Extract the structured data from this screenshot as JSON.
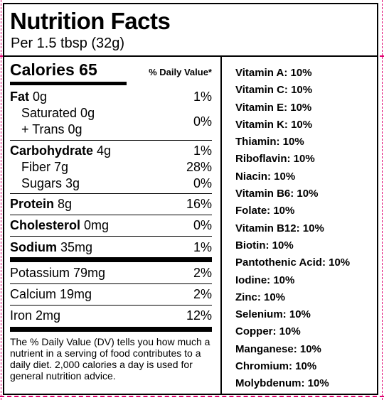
{
  "header": {
    "title": "Nutrition Facts",
    "serving": "Per 1.5 tbsp (32g)"
  },
  "calories": {
    "label": "Calories 65",
    "dv_header": "% Daily Value*"
  },
  "nutrients": {
    "fat_name": "Fat",
    "fat_amount": " 0g",
    "fat_pct": "1%",
    "saturated": "Saturated 0g",
    "trans": "+ Trans 0g",
    "sat_trans_pct": "0%",
    "carb_name": "Carbohydrate",
    "carb_amount": " 4g",
    "carb_pct": "1%",
    "fiber": "Fiber 7g",
    "fiber_pct": "28%",
    "sugars": "Sugars 3g",
    "sugars_pct": "0%",
    "protein_name": "Protein",
    "protein_amount": " 8g",
    "protein_pct": "16%",
    "chol_name": "Cholesterol",
    "chol_amount": " 0mg",
    "chol_pct": "0%",
    "sodium_name": "Sodium",
    "sodium_amount": " 35mg",
    "sodium_pct": "1%",
    "potassium": "Potassium 79mg",
    "potassium_pct": "2%",
    "calcium": "Calcium 19mg",
    "calcium_pct": "2%",
    "iron": "Iron 2mg",
    "iron_pct": "12%"
  },
  "footnote": "The % Daily Value (DV) tells you how much a nutrient in a serving of food contributes to a daily diet. 2,000 calories a day is used for general nutrition advice.",
  "vitamins": [
    "Vitamin A: 10%",
    "Vitamin C: 10%",
    "Vitamin E: 10%",
    "Vitamin K: 10%",
    "Thiamin: 10%",
    "Riboflavin: 10%",
    "Niacin: 10%",
    "Vitamin B6: 10%",
    "Folate: 10%",
    "Vitamin B12: 10%",
    "Biotin: 10%",
    "Pantothenic Acid: 10%",
    "Iodine: 10%",
    "Zinc: 10%",
    "Selenium: 10%",
    "Copper: 10%",
    "Manganese: 10%",
    "Chromium: 10%",
    "Molybdenum: 10%"
  ]
}
